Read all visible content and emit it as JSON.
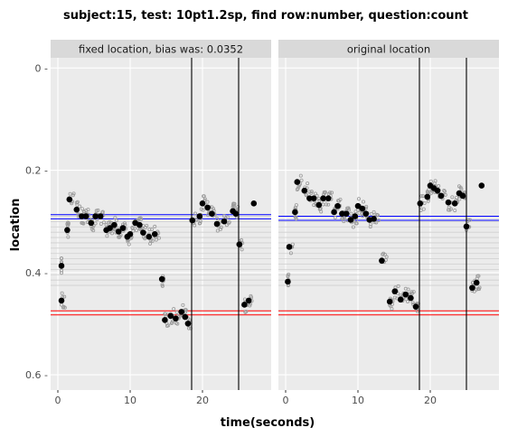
{
  "chart_data": {
    "type": "scatter",
    "title": "subject:15, test: 10pt1.2sp, find row:number, question:count",
    "xlabel": "time(seconds)",
    "ylabel": "location",
    "y_reversed": true,
    "xlim": [
      -1,
      29.5
    ],
    "ylim": [
      -0.02,
      0.63
    ],
    "x_ticks": [
      0,
      10,
      20
    ],
    "y_ticks": [
      0,
      0.2,
      0.4,
      0.6
    ],
    "y_tick_labels": [
      "0 -",
      "0.2 -",
      "0.4 -",
      "0.6 -"
    ],
    "grid": true,
    "colors": {
      "panel_bg": "#ebebeb",
      "strip_bg": "#d9d9d9",
      "grid_major": "#ffffff",
      "row_lines": "#cfcfcf",
      "blue": "#0000ff",
      "red": "#ff0000",
      "points": "#000000",
      "raw_points": "#9a9a9a"
    },
    "row_line_range": [
      0.29,
      0.43
    ],
    "row_line_step": 0.0104,
    "panels": [
      {
        "strip": "fixed location, bias was: 0.0352",
        "blue_lines": [
          0.287,
          0.295
        ],
        "red_lines": [
          0.475,
          0.483
        ],
        "vlines": [
          18.5,
          25.0
        ],
        "fixations": [
          {
            "x": 0.5,
            "y": 0.387
          },
          {
            "x": 0.5,
            "y": 0.455
          },
          {
            "x": 1.3,
            "y": 0.317
          },
          {
            "x": 1.6,
            "y": 0.257
          },
          {
            "x": 2.6,
            "y": 0.277
          },
          {
            "x": 3.3,
            "y": 0.29
          },
          {
            "x": 3.9,
            "y": 0.29
          },
          {
            "x": 4.6,
            "y": 0.303
          },
          {
            "x": 5.2,
            "y": 0.29
          },
          {
            "x": 5.9,
            "y": 0.29
          },
          {
            "x": 6.7,
            "y": 0.317
          },
          {
            "x": 7.2,
            "y": 0.313
          },
          {
            "x": 7.8,
            "y": 0.307
          },
          {
            "x": 8.4,
            "y": 0.32
          },
          {
            "x": 9.0,
            "y": 0.313
          },
          {
            "x": 9.6,
            "y": 0.33
          },
          {
            "x": 10.0,
            "y": 0.325
          },
          {
            "x": 10.7,
            "y": 0.303
          },
          {
            "x": 11.3,
            "y": 0.307
          },
          {
            "x": 11.8,
            "y": 0.322
          },
          {
            "x": 12.6,
            "y": 0.33
          },
          {
            "x": 13.4,
            "y": 0.325
          },
          {
            "x": 14.4,
            "y": 0.413
          },
          {
            "x": 14.8,
            "y": 0.493
          },
          {
            "x": 15.6,
            "y": 0.485
          },
          {
            "x": 16.3,
            "y": 0.49
          },
          {
            "x": 17.1,
            "y": 0.477
          },
          {
            "x": 17.6,
            "y": 0.487
          },
          {
            "x": 18.0,
            "y": 0.5
          },
          {
            "x": 18.6,
            "y": 0.298
          },
          {
            "x": 19.6,
            "y": 0.29
          },
          {
            "x": 20.0,
            "y": 0.265
          },
          {
            "x": 20.7,
            "y": 0.273
          },
          {
            "x": 21.3,
            "y": 0.285
          },
          {
            "x": 22.0,
            "y": 0.305
          },
          {
            "x": 23.0,
            "y": 0.3
          },
          {
            "x": 24.2,
            "y": 0.28
          },
          {
            "x": 24.6,
            "y": 0.285
          },
          {
            "x": 25.1,
            "y": 0.345
          },
          {
            "x": 25.8,
            "y": 0.463
          },
          {
            "x": 26.4,
            "y": 0.455
          },
          {
            "x": 27.1,
            "y": 0.265
          }
        ]
      },
      {
        "strip": "original location",
        "blue_lines": [
          0.29,
          0.298
        ],
        "red_lines": [
          0.475,
          0.483
        ],
        "vlines": [
          18.5,
          25.0
        ],
        "fixations": [
          {
            "x": 0.3,
            "y": 0.418
          },
          {
            "x": 0.5,
            "y": 0.35
          },
          {
            "x": 1.3,
            "y": 0.282
          },
          {
            "x": 1.6,
            "y": 0.223
          },
          {
            "x": 2.6,
            "y": 0.24
          },
          {
            "x": 3.3,
            "y": 0.255
          },
          {
            "x": 3.9,
            "y": 0.255
          },
          {
            "x": 4.6,
            "y": 0.268
          },
          {
            "x": 5.2,
            "y": 0.255
          },
          {
            "x": 5.9,
            "y": 0.255
          },
          {
            "x": 6.7,
            "y": 0.282
          },
          {
            "x": 7.2,
            "y": 0.27
          },
          {
            "x": 7.8,
            "y": 0.285
          },
          {
            "x": 8.4,
            "y": 0.285
          },
          {
            "x": 9.0,
            "y": 0.297
          },
          {
            "x": 9.6,
            "y": 0.29
          },
          {
            "x": 10.0,
            "y": 0.27
          },
          {
            "x": 10.6,
            "y": 0.275
          },
          {
            "x": 11.1,
            "y": 0.285
          },
          {
            "x": 11.6,
            "y": 0.297
          },
          {
            "x": 12.2,
            "y": 0.295
          },
          {
            "x": 13.3,
            "y": 0.377
          },
          {
            "x": 14.4,
            "y": 0.457
          },
          {
            "x": 15.1,
            "y": 0.437
          },
          {
            "x": 15.9,
            "y": 0.453
          },
          {
            "x": 16.6,
            "y": 0.443
          },
          {
            "x": 17.3,
            "y": 0.45
          },
          {
            "x": 18.0,
            "y": 0.467
          },
          {
            "x": 18.6,
            "y": 0.265
          },
          {
            "x": 19.6,
            "y": 0.252
          },
          {
            "x": 20.0,
            "y": 0.23
          },
          {
            "x": 20.5,
            "y": 0.235
          },
          {
            "x": 21.0,
            "y": 0.24
          },
          {
            "x": 21.5,
            "y": 0.25
          },
          {
            "x": 22.5,
            "y": 0.263
          },
          {
            "x": 23.4,
            "y": 0.265
          },
          {
            "x": 24.0,
            "y": 0.245
          },
          {
            "x": 24.5,
            "y": 0.25
          },
          {
            "x": 25.0,
            "y": 0.31
          },
          {
            "x": 25.8,
            "y": 0.43
          },
          {
            "x": 26.4,
            "y": 0.42
          },
          {
            "x": 27.1,
            "y": 0.23
          }
        ]
      }
    ]
  }
}
